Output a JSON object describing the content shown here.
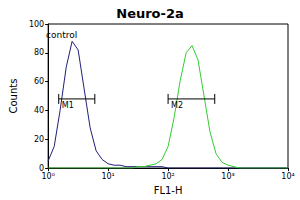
{
  "chart_data": {
    "type": "line",
    "title": "Neuro-2a",
    "xlabel": "FL1-H",
    "ylabel": "Counts",
    "log": "x",
    "grid": false,
    "x": [
      1,
      1.26,
      1.58,
      2,
      2.51,
      3.16,
      3.98,
      5.01,
      6.31,
      7.94,
      10,
      12.6,
      15.8,
      20,
      25.1,
      31.6,
      39.8,
      50.1,
      63.1,
      79.4,
      100,
      126,
      158,
      200,
      251,
      316,
      398,
      501,
      631,
      794,
      1000,
      1259,
      1585,
      1995,
      2512,
      3162,
      3981,
      5012,
      6310,
      7943,
      10000
    ],
    "series": [
      {
        "color": "#1f1f7a",
        "values": [
          5,
          15,
          40,
          70,
          88,
          82,
          55,
          28,
          12,
          6,
          3,
          2,
          2,
          1,
          1,
          1,
          1,
          1,
          1,
          1,
          0,
          0,
          0,
          0,
          0,
          0,
          0,
          0,
          0,
          0,
          0,
          0,
          0,
          0,
          0,
          0,
          0,
          0,
          0,
          0,
          0
        ]
      },
      {
        "color": "#33cc33",
        "values": [
          0,
          0,
          0,
          0,
          0,
          0,
          0,
          0,
          0,
          0,
          0,
          0,
          0,
          0,
          0,
          1,
          1,
          2,
          3,
          6,
          15,
          35,
          60,
          80,
          85,
          75,
          50,
          25,
          10,
          4,
          2,
          1,
          0,
          0,
          0,
          0,
          0,
          0,
          0,
          0,
          0
        ]
      }
    ],
    "xlim": [
      1,
      10000
    ],
    "xticks": [
      {
        "value": 1,
        "label": "10⁰"
      },
      {
        "value": 10,
        "label": "10¹"
      },
      {
        "value": 100,
        "label": "10²"
      },
      {
        "value": 1000,
        "label": "10³"
      },
      {
        "value": 10000,
        "label": "10⁴"
      }
    ],
    "ylim": [
      0,
      100
    ],
    "yticks": [
      0,
      20,
      40,
      60,
      80,
      100
    ],
    "annotations": [
      {
        "text": "control"
      },
      {
        "text": "M1",
        "x": [
          1.5,
          6
        ],
        "y": 48
      },
      {
        "text": "M2",
        "x": [
          100,
          600
        ],
        "y": 48
      }
    ]
  }
}
